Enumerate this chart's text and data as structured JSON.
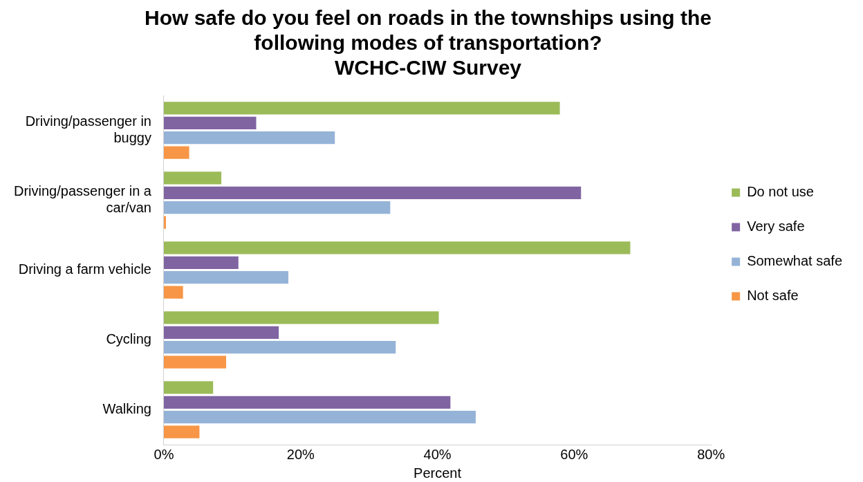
{
  "chart_data": {
    "type": "bar",
    "orientation": "horizontal",
    "title": "How safe do you feel on roads in the townships using the following modes of transportation?",
    "subtitle": "WCHC-CIW Survey",
    "xlabel": "Percent",
    "categories": [
      "Driving/passenger in buggy",
      "Driving/passenger in a car/van",
      "Driving a farm vehicle",
      "Cycling",
      "Walking"
    ],
    "series": [
      {
        "name": "Do not use",
        "color": "#9bbb59",
        "values": [
          57.9,
          8.4,
          68.2,
          40.2,
          7.2
        ]
      },
      {
        "name": "Very safe",
        "color": "#8064a2",
        "values": [
          13.5,
          61.0,
          10.9,
          16.8,
          41.9
        ]
      },
      {
        "name": "Somewhat safe",
        "color": "#95b3d7",
        "values": [
          25.0,
          33.1,
          18.2,
          33.9,
          45.6
        ]
      },
      {
        "name": "Not safe",
        "color": "#f79646",
        "values": [
          3.7,
          0.3,
          2.8,
          9.1,
          5.2
        ]
      }
    ],
    "xlim": [
      0,
      80
    ],
    "xticks": [
      {
        "value": 0,
        "label": "0%"
      },
      {
        "value": 20,
        "label": "20%"
      },
      {
        "value": 40,
        "label": "40%"
      },
      {
        "value": 60,
        "label": "60%"
      },
      {
        "value": 80,
        "label": "80%"
      }
    ],
    "grid": false,
    "legend": "right"
  }
}
